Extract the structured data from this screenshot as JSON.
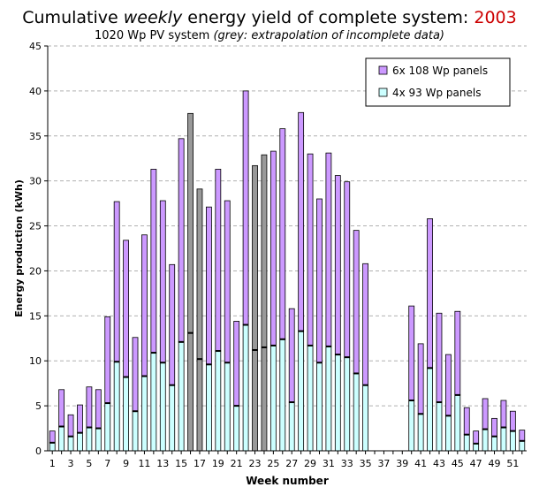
{
  "chart_data": {
    "type": "bar",
    "title_prefix": "Cumulative",
    "title_emph": "weekly",
    "title_middle": "energy yield of complete system:",
    "title_year": "2003",
    "subtitle_plain": "1020 Wp PV system",
    "subtitle_emph": "(grey: extrapolation of incomplete data)",
    "xlabel": "Week number",
    "ylabel": "Energy production (kWh)",
    "ylim": [
      0,
      45
    ],
    "ytick_step": 5,
    "grid": "horizontal dashed",
    "legend_position": "top-right",
    "x_tick_labels": [
      "1",
      "3",
      "5",
      "7",
      "9",
      "11",
      "13",
      "15",
      "17",
      "19",
      "21",
      "23",
      "25",
      "27",
      "29",
      "31",
      "33",
      "35",
      "37",
      "39",
      "41",
      "43",
      "45",
      "47",
      "49",
      "51"
    ],
    "weeks": [
      1,
      2,
      3,
      4,
      5,
      6,
      7,
      8,
      9,
      10,
      11,
      12,
      13,
      14,
      15,
      16,
      17,
      18,
      19,
      20,
      21,
      22,
      23,
      24,
      25,
      26,
      27,
      28,
      29,
      30,
      31,
      32,
      33,
      34,
      35,
      36,
      37,
      38,
      39,
      40,
      41,
      42,
      43,
      44,
      45,
      46,
      47,
      48,
      49,
      50,
      51,
      52
    ],
    "series": [
      {
        "name": "4x 93 Wp panels",
        "color": "#ccffff",
        "values": [
          0.9,
          2.7,
          1.6,
          2.0,
          2.6,
          2.5,
          5.3,
          9.9,
          8.2,
          4.4,
          8.3,
          10.9,
          9.8,
          7.3,
          12.1,
          13.1,
          10.2,
          9.6,
          11.1,
          9.8,
          5.0,
          14.0,
          11.2,
          11.5,
          11.7,
          12.4,
          5.4,
          13.3,
          11.7,
          9.8,
          11.6,
          10.7,
          10.4,
          8.6,
          7.3,
          null,
          null,
          null,
          null,
          5.6,
          4.1,
          9.2,
          5.4,
          3.9,
          6.2,
          1.8,
          0.8,
          2.4,
          1.6,
          2.6,
          2.2,
          1.1
        ]
      },
      {
        "name": "6x 108 Wp panels",
        "color": "#cc99ff",
        "values": [
          1.3,
          4.1,
          2.4,
          3.1,
          4.5,
          4.3,
          9.6,
          17.8,
          15.2,
          8.2,
          15.7,
          20.4,
          18.0,
          13.4,
          22.6,
          24.4,
          18.9,
          17.5,
          20.2,
          18.0,
          9.4,
          26.0,
          20.5,
          21.4,
          21.6,
          23.4,
          10.4,
          24.3,
          21.3,
          18.2,
          21.5,
          19.9,
          19.5,
          15.9,
          13.5,
          null,
          null,
          null,
          null,
          10.5,
          7.8,
          16.6,
          9.9,
          6.8,
          9.3,
          3.0,
          1.4,
          3.4,
          2.0,
          3.0,
          2.2,
          1.2
        ]
      }
    ],
    "extrapolated_weeks": [
      16,
      17,
      23,
      24
    ],
    "extrapolated_color": "#999999"
  }
}
